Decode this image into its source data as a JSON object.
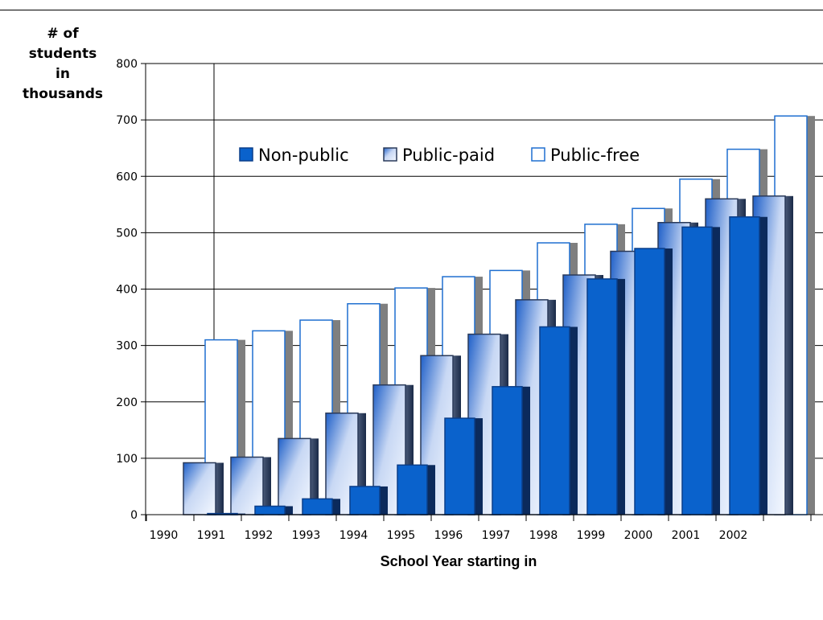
{
  "chart_data": {
    "type": "bar",
    "title": "",
    "ylabel_lines": [
      "# of",
      "students",
      "in",
      "thousands"
    ],
    "xlabel": "School Year starting in",
    "categories": [
      "1990",
      "1991",
      "1992",
      "1993",
      "1994",
      "1995",
      "1996",
      "1997",
      "1998",
      "1999",
      "2000",
      "2001",
      "2002"
    ],
    "ylim": [
      0,
      800
    ],
    "yticks": [
      0,
      100,
      200,
      300,
      400,
      500,
      600,
      700,
      800
    ],
    "grid": "horizontal",
    "legend_position": "top",
    "series": [
      {
        "name": "Non-public",
        "color": "#0a62cc",
        "values": [
          0,
          2,
          15,
          28,
          50,
          88,
          171,
          227,
          333,
          418,
          472,
          510,
          528
        ]
      },
      {
        "name": "Public-paid",
        "color": "#a9c4ee",
        "values": [
          92,
          102,
          135,
          180,
          230,
          282,
          320,
          381,
          425,
          467,
          518,
          560,
          565
        ]
      },
      {
        "name": "Public-free",
        "color": "#ffffff",
        "values": [
          310,
          326,
          345,
          374,
          402,
          422,
          433,
          482,
          515,
          543,
          595,
          648,
          707
        ]
      }
    ]
  }
}
